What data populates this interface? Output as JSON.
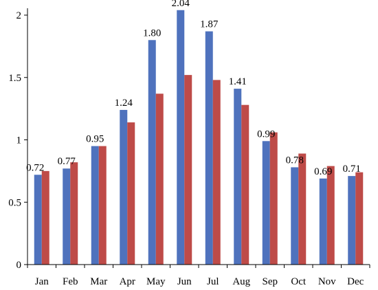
{
  "chart_data": {
    "type": "bar",
    "categories": [
      "Jan",
      "Feb",
      "Mar",
      "Apr",
      "May",
      "Jun",
      "Jul",
      "Aug",
      "Sep",
      "Oct",
      "Nov",
      "Dec"
    ],
    "series": [
      {
        "values": [
          0.72,
          0.77,
          0.95,
          1.24,
          1.8,
          2.04,
          1.87,
          1.41,
          0.99,
          0.78,
          0.69,
          0.71
        ],
        "color": "#4F72BD",
        "data_labels": [
          "0.72",
          "0.77",
          "0.95",
          "1.24",
          "1.80",
          "2.04",
          "1.87",
          "1.41",
          "0.99",
          "0.78",
          "0.69",
          "0.71"
        ]
      },
      {
        "values": [
          0.75,
          0.82,
          0.95,
          1.14,
          1.37,
          1.52,
          1.48,
          1.28,
          1.06,
          0.89,
          0.79,
          0.74
        ],
        "color": "#BE4B48"
      }
    ],
    "yticks": [
      "0",
      "0.5",
      "1",
      "1.5",
      "2"
    ],
    "ylim": [
      0,
      2.0
    ],
    "grid": false,
    "legend": "none"
  }
}
